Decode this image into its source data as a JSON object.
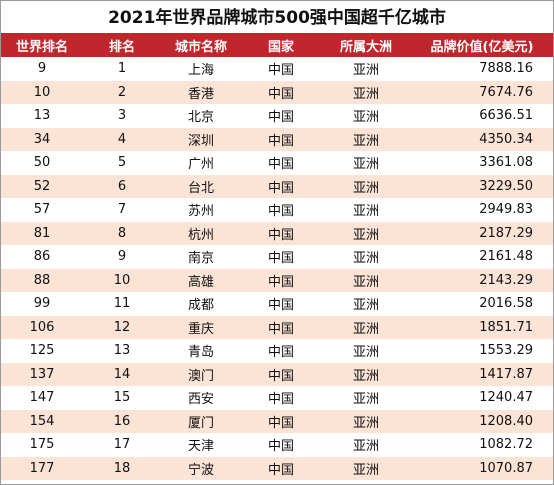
{
  "header": {
    "title": "2021年世界品牌城市500强中国超千亿城市"
  },
  "table": {
    "columns": [
      "世界排名",
      "排名",
      "城市名称",
      "国家",
      "所属大洲",
      "品牌价值(亿美元)"
    ],
    "rows": [
      [
        "9",
        "1",
        "上海",
        "中国",
        "亚洲",
        "7888.16"
      ],
      [
        "10",
        "2",
        "香港",
        "中国",
        "亚洲",
        "7674.76"
      ],
      [
        "13",
        "3",
        "北京",
        "中国",
        "亚洲",
        "6636.51"
      ],
      [
        "34",
        "4",
        "深圳",
        "中国",
        "亚洲",
        "4350.34"
      ],
      [
        "50",
        "5",
        "广州",
        "中国",
        "亚洲",
        "3361.08"
      ],
      [
        "52",
        "6",
        "台北",
        "中国",
        "亚洲",
        "3229.50"
      ],
      [
        "57",
        "7",
        "苏州",
        "中国",
        "亚洲",
        "2949.83"
      ],
      [
        "81",
        "8",
        "杭州",
        "中国",
        "亚洲",
        "2187.29"
      ],
      [
        "86",
        "9",
        "南京",
        "中国",
        "亚洲",
        "2161.48"
      ],
      [
        "88",
        "10",
        "高雄",
        "中国",
        "亚洲",
        "2143.29"
      ],
      [
        "99",
        "11",
        "成都",
        "中国",
        "亚洲",
        "2016.58"
      ],
      [
        "106",
        "12",
        "重庆",
        "中国",
        "亚洲",
        "1851.71"
      ],
      [
        "125",
        "13",
        "青岛",
        "中国",
        "亚洲",
        "1553.29"
      ],
      [
        "137",
        "14",
        "澳门",
        "中国",
        "亚洲",
        "1417.87"
      ],
      [
        "147",
        "15",
        "西安",
        "中国",
        "亚洲",
        "1240.47"
      ],
      [
        "154",
        "16",
        "厦门",
        "中国",
        "亚洲",
        "1208.40"
      ],
      [
        "175",
        "17",
        "天津",
        "中国",
        "亚洲",
        "1082.72"
      ],
      [
        "177",
        "18",
        "宁波",
        "中国",
        "亚洲",
        "1070.87"
      ]
    ]
  }
}
